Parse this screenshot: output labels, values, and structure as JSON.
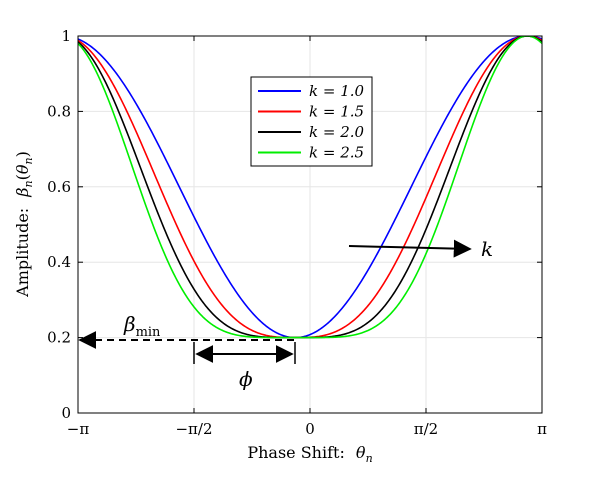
{
  "chart_data": {
    "type": "line",
    "xlabel_text": "Phase Shift:",
    "xlabel_var": "θ",
    "xlabel_sub": "n",
    "ylabel_text": "Amplitude:",
    "ylabel_var": "β",
    "ylabel_sub": "n",
    "ylabel_arg_open": "(",
    "ylabel_arg_var": "θ",
    "ylabel_arg_sub": "n",
    "ylabel_arg_close": ")",
    "xlim": [
      -3.14159,
      3.14159
    ],
    "ylim": [
      0,
      1
    ],
    "x_ticks": [
      {
        "value": -3.14159,
        "label": "−π"
      },
      {
        "value": -1.5708,
        "label": "−π/2"
      },
      {
        "value": 0,
        "label": "0"
      },
      {
        "value": 1.5708,
        "label": "π/2"
      },
      {
        "value": 3.14159,
        "label": "π"
      }
    ],
    "y_ticks": [
      {
        "value": 0,
        "label": "0"
      },
      {
        "value": 0.2,
        "label": "0.2"
      },
      {
        "value": 0.4,
        "label": "0.4"
      },
      {
        "value": 0.6,
        "label": "0.6"
      },
      {
        "value": 0.8,
        "label": "0.8"
      },
      {
        "value": 1,
        "label": "1"
      }
    ],
    "grid": true,
    "legend_position": "top-center",
    "beta_min": 0.2,
    "phase_offset": -0.2,
    "series": [
      {
        "name": "k = 1.0",
        "k": 1.0,
        "color": "#0000ff"
      },
      {
        "name": "k = 1.5",
        "k": 1.5,
        "color": "#ff0000"
      },
      {
        "name": "k = 2.0",
        "k": 2.0,
        "color": "#000000"
      },
      {
        "name": "k = 2.5",
        "k": 2.5,
        "color": "#00ee00"
      }
    ],
    "annotations": {
      "arrow_label": "k",
      "beta_min_label": "β",
      "beta_min_sub": "min",
      "phi_label": "ϕ"
    }
  }
}
